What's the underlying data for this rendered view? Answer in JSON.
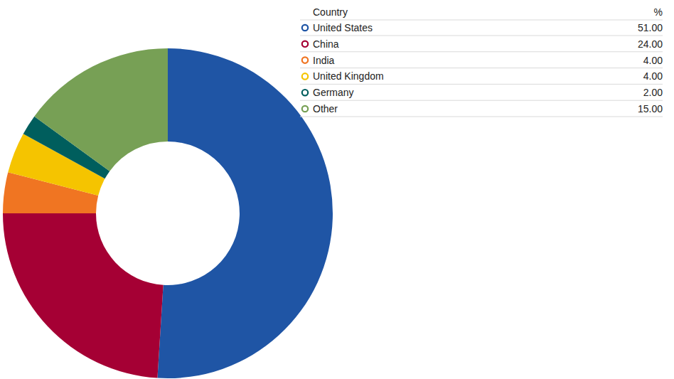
{
  "chart_data": {
    "type": "donut",
    "legend_columns": [
      "Country",
      "%"
    ],
    "categories": [
      "United States",
      "China",
      "India",
      "United Kingdom",
      "Germany",
      "Other"
    ],
    "values": [
      51,
      24,
      4,
      4,
      2,
      15
    ],
    "value_labels": [
      "51.00",
      "24.00",
      "4.00",
      "4.00",
      "2.00",
      "15.00"
    ],
    "colors": [
      "#1f55a5",
      "#a50034",
      "#f07522",
      "#f5c400",
      "#005e5d",
      "#77a055"
    ],
    "legend": "top-right"
  }
}
